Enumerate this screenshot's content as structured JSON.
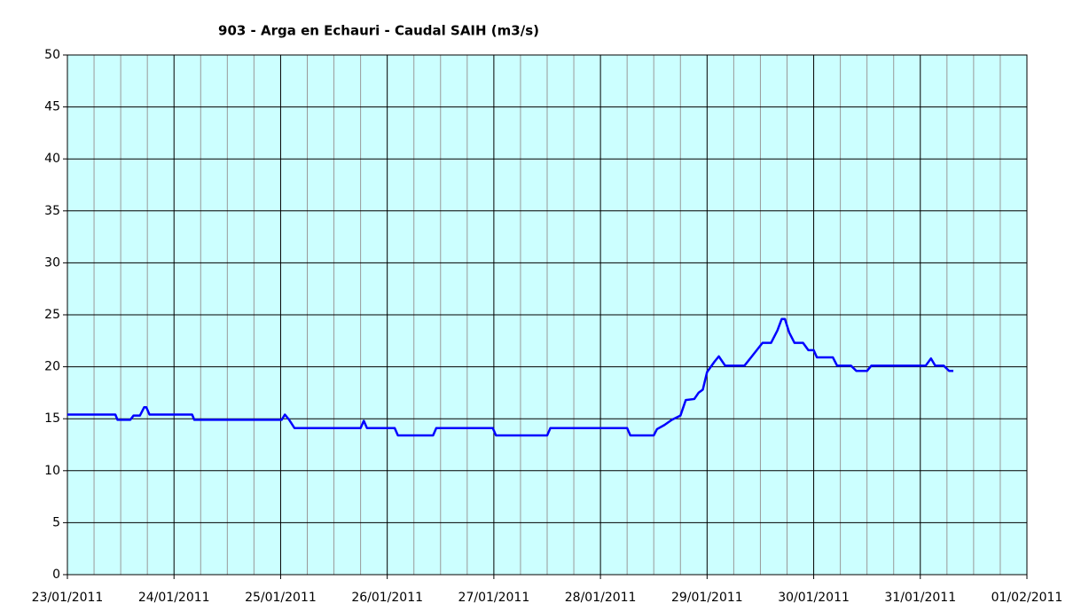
{
  "chart_data": {
    "type": "line",
    "title": "903 - Arga en Echauri - Caudal SAIH (m3/s)",
    "color": "#0000ff",
    "background": "#ccffff",
    "grid": true,
    "xlim": [
      0,
      9
    ],
    "xticks": [
      {
        "value": 0,
        "label": "23/01/2011"
      },
      {
        "value": 1,
        "label": "24/01/2011"
      },
      {
        "value": 2,
        "label": "25/01/2011"
      },
      {
        "value": 3,
        "label": "26/01/2011"
      },
      {
        "value": 4,
        "label": "27/01/2011"
      },
      {
        "value": 5,
        "label": "28/01/2011"
      },
      {
        "value": 6,
        "label": "29/01/2011"
      },
      {
        "value": 7,
        "label": "30/01/2011"
      },
      {
        "value": 8,
        "label": "31/01/2011"
      },
      {
        "value": 9,
        "label": "01/02/2011"
      }
    ],
    "ylim": [
      0,
      50
    ],
    "yticks": [
      0,
      5,
      10,
      15,
      20,
      25,
      30,
      35,
      40,
      45,
      50
    ],
    "x": [
      0,
      0.45,
      0.47,
      0.59,
      0.62,
      0.68,
      0.72,
      0.74,
      0.77,
      1.17,
      1.19,
      2.01,
      2.04,
      2.08,
      2.13,
      2.75,
      2.78,
      2.81,
      3.07,
      3.1,
      3.43,
      3.46,
      3.99,
      4.02,
      4.5,
      4.53,
      5.25,
      5.28,
      5.5,
      5.53,
      5.6,
      5.67,
      5.75,
      5.8,
      5.88,
      5.92,
      5.96,
      6.0,
      6.07,
      6.11,
      6.17,
      6.35,
      6.42,
      6.52,
      6.6,
      6.66,
      6.7,
      6.73,
      6.77,
      6.82,
      6.9,
      6.95,
      7.0,
      7.03,
      7.18,
      7.22,
      7.35,
      7.4,
      7.5,
      7.54,
      8.05,
      8.1,
      8.14,
      8.22,
      8.27,
      8.31
    ],
    "values": [
      15.4,
      15.4,
      14.9,
      14.9,
      15.3,
      15.3,
      16.1,
      16.1,
      15.4,
      15.4,
      14.9,
      14.9,
      15.4,
      14.9,
      14.1,
      14.1,
      14.8,
      14.1,
      14.1,
      13.4,
      13.4,
      14.1,
      14.1,
      13.4,
      13.4,
      14.1,
      14.1,
      13.4,
      13.4,
      14.0,
      14.4,
      14.9,
      15.3,
      16.8,
      16.9,
      17.5,
      17.8,
      19.5,
      20.5,
      21.0,
      20.1,
      20.1,
      21.0,
      22.3,
      22.3,
      23.5,
      24.6,
      24.6,
      23.3,
      22.3,
      22.3,
      21.6,
      21.6,
      20.9,
      20.9,
      20.1,
      20.1,
      19.6,
      19.6,
      20.1,
      20.1,
      20.8,
      20.1,
      20.1,
      19.6,
      19.6
    ]
  }
}
